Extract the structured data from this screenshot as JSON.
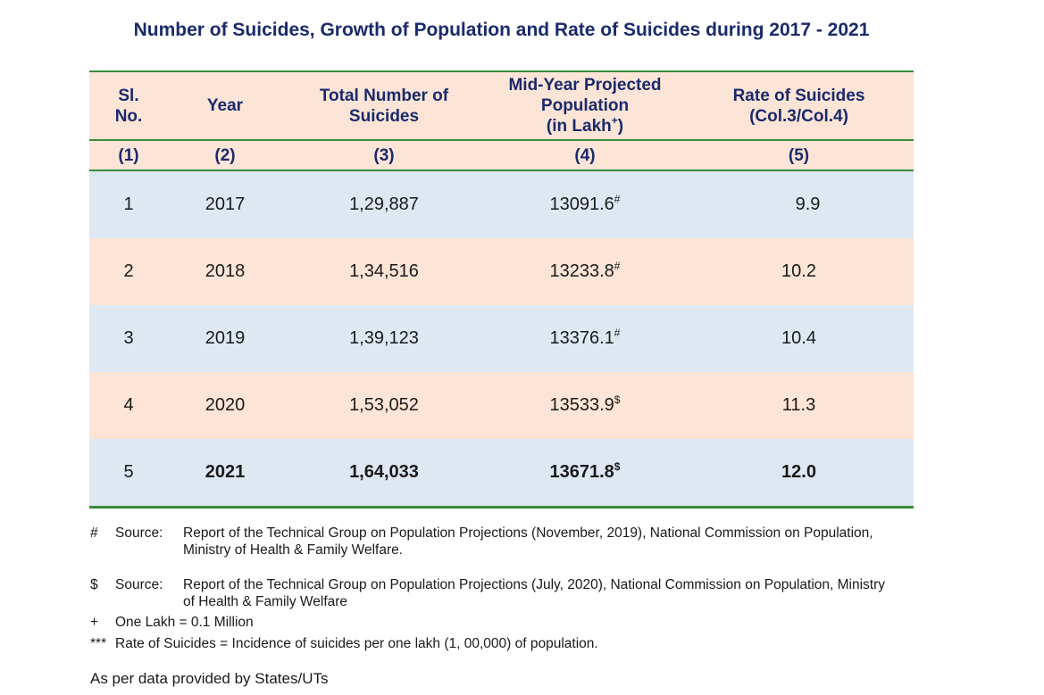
{
  "title": "Number of Suicides, Growth of Population and Rate of Suicides during 2017 - 2021",
  "headers": {
    "col1": "Sl. No.",
    "col2": "Year",
    "col3": "Total Number of Suicides",
    "col4_line1": "Mid-Year Projected",
    "col4_line2": "Population",
    "col4_line3": "(in Lakh",
    "col4_sup": "+",
    "col4_close": ")",
    "col5_line1": "Rate of Suicides",
    "col5_line2": "(Col.3/Col.4)"
  },
  "column_numbers": [
    "(1)",
    "(2)",
    "(3)",
    "(4)",
    "(5)"
  ],
  "rows": [
    {
      "sl": "1",
      "year": "2017",
      "suicides": "1,29,887",
      "population": "13091.6",
      "mark": "#",
      "rate": "9.9"
    },
    {
      "sl": "2",
      "year": "2018",
      "suicides": "1,34,516",
      "population": "13233.8",
      "mark": "#",
      "rate": "10.2"
    },
    {
      "sl": "3",
      "year": "2019",
      "suicides": "1,39,123",
      "population": "13376.1",
      "mark": "#",
      "rate": "10.4"
    },
    {
      "sl": "4",
      "year": "2020",
      "suicides": "1,53,052",
      "population": "13533.9",
      "mark": "$",
      "rate": "11.3"
    },
    {
      "sl": "5",
      "year": "2021",
      "suicides": "1,64,033",
      "population": "13671.8",
      "mark": "$",
      "rate": "12.0"
    }
  ],
  "notes": [
    {
      "symbol": "#",
      "label": "Source:",
      "text": "Report of the Technical Group on Population Projections (November, 2019), National Commission on Population, Ministry of Health & Family Welfare."
    },
    {
      "symbol": "$",
      "label": "Source:",
      "text": "Report of the Technical Group on Population Projections (July, 2020), National Commission on Population, Ministry of Health & Family Welfare"
    },
    {
      "symbol": "+",
      "text": "One Lakh = 0.1 Million"
    },
    {
      "symbol": "***",
      "text": "Rate of Suicides = Incidence of suicides per one lakh (1, 00,000) of population."
    }
  ],
  "footer": "As per data provided by States/UTs"
}
